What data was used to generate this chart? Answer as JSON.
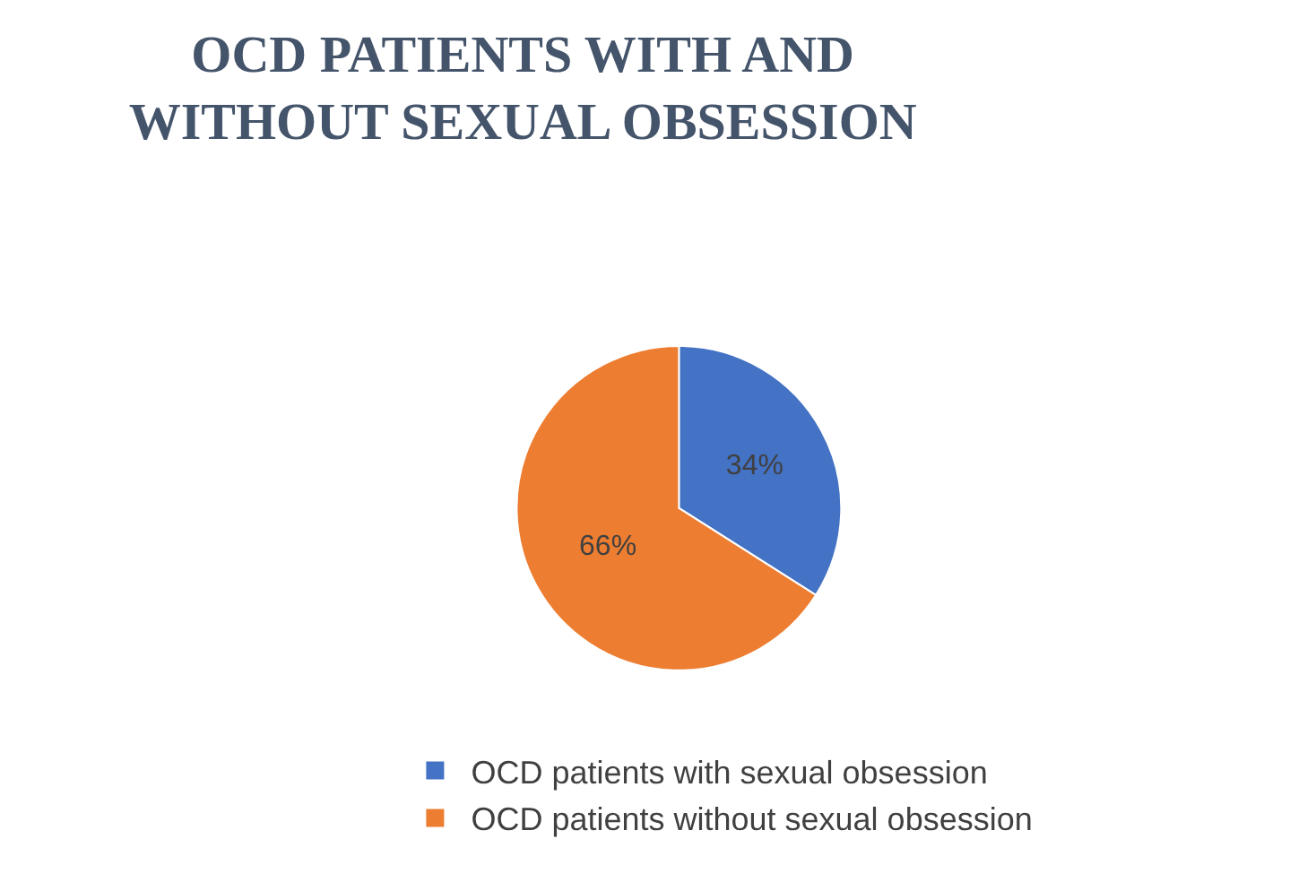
{
  "chart_data": {
    "type": "pie",
    "title": "OCD PATIENTS WITH AND WITHOUT SEXUAL OBSESSION",
    "categories": [
      "OCD patients with sexual obsession",
      "OCD patients without sexual obsession"
    ],
    "values": [
      34,
      66
    ],
    "value_labels": [
      "34%",
      "66%"
    ],
    "colors": [
      "#4472c4",
      "#ed7d31"
    ],
    "legend": "bottom"
  }
}
